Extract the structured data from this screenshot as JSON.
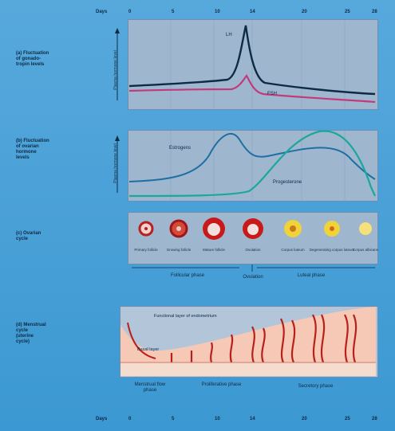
{
  "days_label": "Days",
  "day_ticks": [
    "0",
    "5",
    "10",
    "14",
    "20",
    "25",
    "28"
  ],
  "panels": {
    "a_label": [
      "(a) Fluctuation",
      "of gonado-",
      "tropin levels"
    ],
    "a_axis": "Plasma hormone level",
    "a_series": {
      "lh": "LH",
      "fsh": "FSH"
    },
    "b_label": [
      "(b) Fluctuation",
      "of ovarian",
      "hormone",
      "levels"
    ],
    "b_axis": "Plasma hormone level",
    "b_series": {
      "estrogen": "Estrogens",
      "progesterone": "Progesterone"
    },
    "c_label": [
      "(c) Ovarian",
      "cycle"
    ],
    "c_stages": [
      "Primary follicle",
      "Growing follicle",
      "Mature follicle",
      "Ovulation",
      "Corpus luteum",
      "Degenerating corpus luteum",
      "Corpus albicans"
    ],
    "c_phases": {
      "follicular": "Follicular phase",
      "ovulation": "Ovulation",
      "luteal": "Luteal phase"
    },
    "d_label": [
      "(d) Menstrual",
      "cycle",
      "(uterine",
      "cycle)"
    ],
    "d_labels": {
      "functional": "Functional layer of endometrium",
      "basal": "Basal layer"
    },
    "d_phases": {
      "menstrual": "Menstrual flow phase",
      "proliferative": "Proliferative phase",
      "secretory": "Secretory phase"
    }
  },
  "colors": {
    "lh": "#0e2b45",
    "fsh": "#c23a7a",
    "estrogen": "#1f6fa3",
    "progesterone": "#1aa89a"
  }
}
